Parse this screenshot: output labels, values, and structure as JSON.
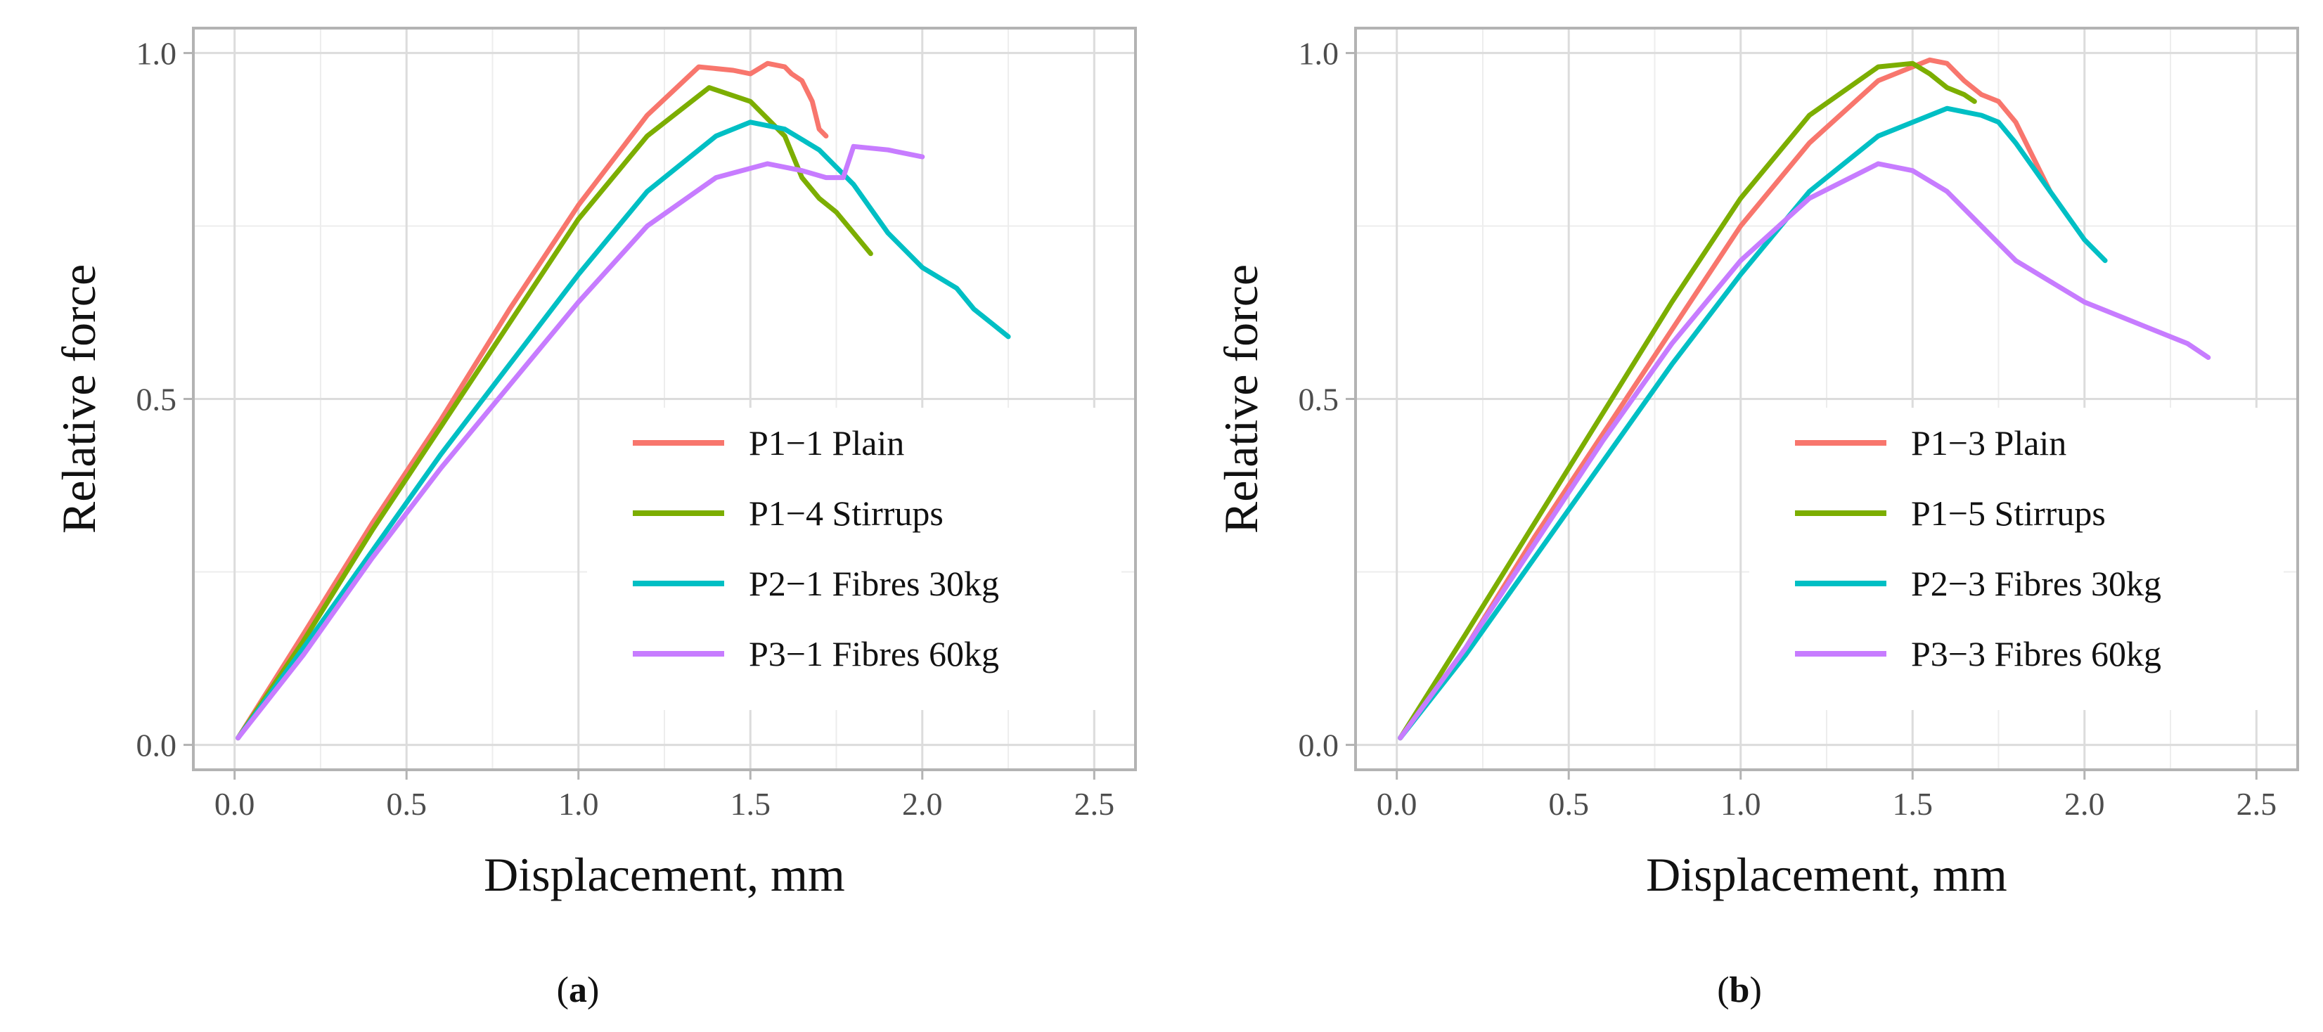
{
  "chart_data": [
    {
      "type": "line",
      "panel_label": "a",
      "xlabel": "Displacement, mm",
      "ylabel": "Relative force",
      "xlim": [
        -0.12,
        2.62
      ],
      "ylim": [
        -0.036,
        1.036
      ],
      "x_ticks": [
        0.0,
        0.5,
        1.0,
        1.5,
        2.0,
        2.5
      ],
      "x_tick_labels": [
        "0.0",
        "0.5",
        "1.0",
        "1.5",
        "2.0",
        "2.5"
      ],
      "y_ticks": [
        0.0,
        0.5,
        1.0
      ],
      "y_tick_labels": [
        "0.0",
        "0.5",
        "1.0"
      ],
      "grid": true,
      "legend_position": "lower-right",
      "series": [
        {
          "name": "P1−1 Plain",
          "color": "#F8766D",
          "x": [
            0.01,
            0.2,
            0.4,
            0.6,
            0.8,
            1.0,
            1.2,
            1.35,
            1.45,
            1.5,
            1.55,
            1.6,
            1.62,
            1.65,
            1.68,
            1.7,
            1.72
          ],
          "y": [
            0.01,
            0.16,
            0.32,
            0.47,
            0.63,
            0.78,
            0.91,
            0.98,
            0.975,
            0.97,
            0.985,
            0.98,
            0.97,
            0.96,
            0.93,
            0.89,
            0.88
          ]
        },
        {
          "name": "P1−4 Stirrups",
          "color": "#7CAE00",
          "x": [
            0.01,
            0.2,
            0.4,
            0.6,
            0.8,
            1.0,
            1.2,
            1.38,
            1.5,
            1.6,
            1.65,
            1.7,
            1.75,
            1.8,
            1.85
          ],
          "y": [
            0.01,
            0.15,
            0.31,
            0.46,
            0.61,
            0.76,
            0.88,
            0.95,
            0.93,
            0.88,
            0.82,
            0.79,
            0.77,
            0.74,
            0.71
          ]
        },
        {
          "name": "P2−1 Fibres 30kg",
          "color": "#00BFC4",
          "x": [
            0.01,
            0.2,
            0.4,
            0.6,
            0.8,
            1.0,
            1.2,
            1.4,
            1.5,
            1.6,
            1.7,
            1.8,
            1.9,
            2.0,
            2.1,
            2.15,
            2.2,
            2.25
          ],
          "y": [
            0.01,
            0.14,
            0.28,
            0.42,
            0.55,
            0.68,
            0.8,
            0.88,
            0.9,
            0.89,
            0.86,
            0.81,
            0.74,
            0.69,
            0.66,
            0.63,
            0.61,
            0.59
          ]
        },
        {
          "name": "P3−1 Fibres 60kg",
          "color": "#C77CFF",
          "x": [
            0.01,
            0.2,
            0.4,
            0.6,
            0.8,
            1.0,
            1.2,
            1.4,
            1.55,
            1.65,
            1.72,
            1.77,
            1.8,
            1.9,
            2.0
          ],
          "y": [
            0.01,
            0.13,
            0.27,
            0.4,
            0.52,
            0.64,
            0.75,
            0.82,
            0.84,
            0.83,
            0.82,
            0.82,
            0.865,
            0.86,
            0.85
          ]
        }
      ]
    },
    {
      "type": "line",
      "panel_label": "b",
      "xlabel": "Displacement, mm",
      "ylabel": "Relative force",
      "xlim": [
        -0.12,
        2.62
      ],
      "ylim": [
        -0.036,
        1.036
      ],
      "x_ticks": [
        0.0,
        0.5,
        1.0,
        1.5,
        2.0,
        2.5
      ],
      "x_tick_labels": [
        "0.0",
        "0.5",
        "1.0",
        "1.5",
        "2.0",
        "2.5"
      ],
      "y_ticks": [
        0.0,
        0.5,
        1.0
      ],
      "y_tick_labels": [
        "0.0",
        "0.5",
        "1.0"
      ],
      "grid": true,
      "legend_position": "lower-right",
      "series": [
        {
          "name": "P1−3 Plain",
          "color": "#F8766D",
          "x": [
            0.01,
            0.2,
            0.4,
            0.6,
            0.8,
            1.0,
            1.2,
            1.4,
            1.55,
            1.6,
            1.65,
            1.7,
            1.75,
            1.8,
            1.85,
            1.9
          ],
          "y": [
            0.01,
            0.14,
            0.3,
            0.45,
            0.6,
            0.75,
            0.87,
            0.96,
            0.99,
            0.985,
            0.96,
            0.94,
            0.93,
            0.9,
            0.85,
            0.8
          ]
        },
        {
          "name": "P1−5 Stirrups",
          "color": "#7CAE00",
          "x": [
            0.01,
            0.2,
            0.4,
            0.6,
            0.8,
            1.0,
            1.2,
            1.4,
            1.5,
            1.55,
            1.6,
            1.65,
            1.68
          ],
          "y": [
            0.01,
            0.16,
            0.32,
            0.48,
            0.64,
            0.79,
            0.91,
            0.98,
            0.985,
            0.97,
            0.95,
            0.94,
            0.93
          ]
        },
        {
          "name": "P2−3 Fibres 30kg",
          "color": "#00BFC4",
          "x": [
            0.01,
            0.2,
            0.4,
            0.6,
            0.8,
            1.0,
            1.2,
            1.4,
            1.6,
            1.7,
            1.75,
            1.8,
            1.9,
            2.0,
            2.06
          ],
          "y": [
            0.01,
            0.13,
            0.27,
            0.41,
            0.55,
            0.68,
            0.8,
            0.88,
            0.92,
            0.91,
            0.9,
            0.87,
            0.8,
            0.73,
            0.7
          ]
        },
        {
          "name": "P3−3 Fibres 60kg",
          "color": "#C77CFF",
          "x": [
            0.01,
            0.2,
            0.4,
            0.6,
            0.8,
            1.0,
            1.2,
            1.4,
            1.5,
            1.6,
            1.7,
            1.8,
            1.9,
            2.0,
            2.1,
            2.2,
            2.3,
            2.36
          ],
          "y": [
            0.01,
            0.14,
            0.29,
            0.44,
            0.58,
            0.7,
            0.79,
            0.84,
            0.83,
            0.8,
            0.75,
            0.7,
            0.67,
            0.64,
            0.62,
            0.6,
            0.58,
            0.56
          ]
        }
      ]
    }
  ]
}
